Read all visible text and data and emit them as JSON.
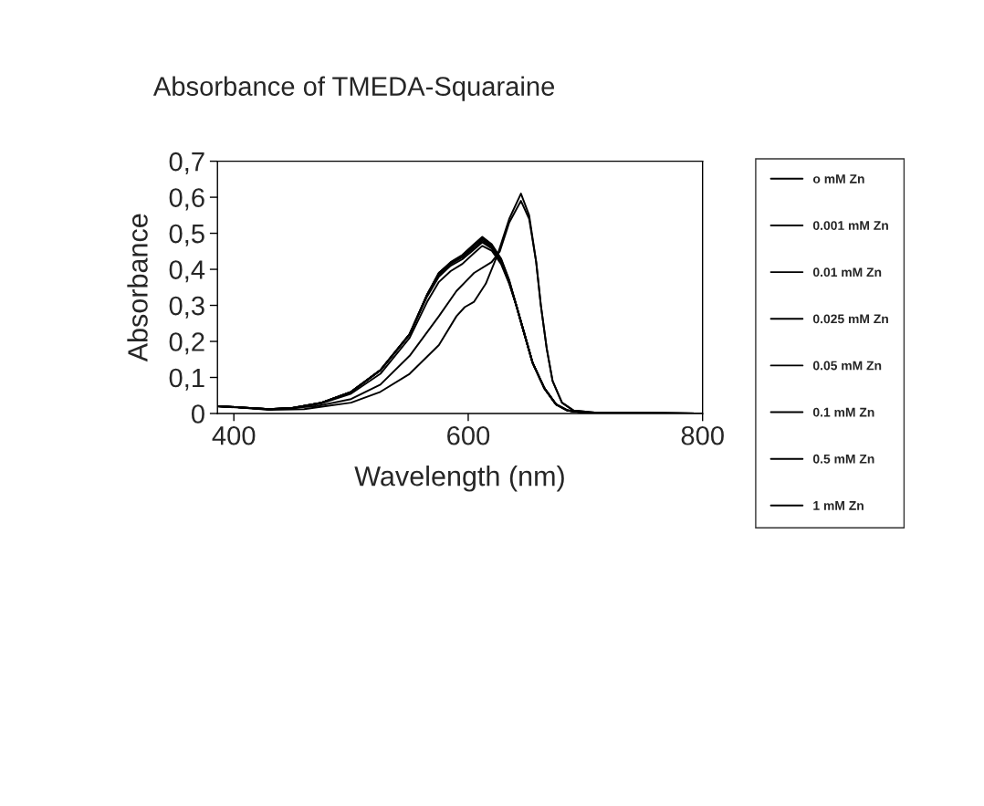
{
  "chart_data": {
    "type": "line",
    "title": "Absorbance of TMEDA-Squaraine",
    "xlabel": "Wavelength (nm)",
    "ylabel": "Absorbance",
    "xlim": [
      386,
      800
    ],
    "xticks": [
      400,
      600,
      800
    ],
    "ylim": [
      0,
      0.7
    ],
    "yticks": [
      0,
      {
        "value": 0.1,
        "label": "0,1"
      },
      {
        "value": 0.2,
        "label": "0,2"
      },
      {
        "value": 0.3,
        "label": "0,3"
      },
      {
        "value": 0.4,
        "label": "0,4"
      },
      {
        "value": 0.5,
        "label": "0,5"
      },
      {
        "value": 0.6,
        "label": "0,6"
      },
      {
        "value": 0.7,
        "label": "0,7"
      }
    ],
    "grid": false,
    "legend": "right",
    "marker": "none",
    "line_style": "solid",
    "series": [
      {
        "name": "o mM Zn",
        "color": "#000000",
        "x": [
          386,
          400,
          430,
          450,
          475,
          500,
          525,
          550,
          565,
          575,
          585,
          595,
          605,
          612,
          620,
          628,
          635,
          641,
          648,
          655,
          665,
          675,
          685,
          700,
          800
        ],
        "values": [
          0.02,
          0.018,
          0.012,
          0.015,
          0.03,
          0.06,
          0.12,
          0.22,
          0.33,
          0.39,
          0.42,
          0.44,
          0.47,
          0.49,
          0.47,
          0.43,
          0.37,
          0.3,
          0.22,
          0.14,
          0.07,
          0.025,
          0.008,
          0.002,
          0.0
        ]
      },
      {
        "name": "0.001 mM Zn",
        "color": "#000000",
        "x": [
          386,
          400,
          430,
          450,
          475,
          500,
          525,
          550,
          565,
          575,
          585,
          595,
          605,
          612,
          620,
          628,
          635,
          641,
          648,
          655,
          665,
          675,
          685,
          700,
          800
        ],
        "values": [
          0.02,
          0.018,
          0.012,
          0.015,
          0.03,
          0.06,
          0.12,
          0.22,
          0.33,
          0.39,
          0.418,
          0.438,
          0.468,
          0.488,
          0.468,
          0.428,
          0.368,
          0.3,
          0.22,
          0.14,
          0.07,
          0.025,
          0.008,
          0.002,
          0.0
        ]
      },
      {
        "name": "0.01 mM Zn",
        "color": "#000000",
        "x": [
          386,
          400,
          430,
          450,
          475,
          500,
          525,
          550,
          565,
          575,
          585,
          595,
          605,
          612,
          620,
          628,
          635,
          641,
          648,
          655,
          665,
          675,
          685,
          700,
          800
        ],
        "values": [
          0.02,
          0.018,
          0.012,
          0.015,
          0.03,
          0.06,
          0.12,
          0.22,
          0.33,
          0.39,
          0.416,
          0.436,
          0.465,
          0.485,
          0.465,
          0.425,
          0.366,
          0.3,
          0.22,
          0.14,
          0.07,
          0.025,
          0.008,
          0.002,
          0.0
        ]
      },
      {
        "name": "0.025 mM Zn",
        "color": "#000000",
        "x": [
          386,
          400,
          430,
          450,
          475,
          500,
          525,
          550,
          565,
          575,
          585,
          595,
          605,
          612,
          620,
          628,
          635,
          641,
          648,
          655,
          665,
          675,
          685,
          700,
          800
        ],
        "values": [
          0.02,
          0.018,
          0.012,
          0.015,
          0.03,
          0.06,
          0.12,
          0.22,
          0.33,
          0.385,
          0.415,
          0.433,
          0.46,
          0.48,
          0.462,
          0.422,
          0.364,
          0.3,
          0.22,
          0.14,
          0.07,
          0.025,
          0.008,
          0.002,
          0.0
        ]
      },
      {
        "name": "0.05 mM Zn",
        "color": "#000000",
        "x": [
          386,
          400,
          430,
          450,
          475,
          500,
          525,
          550,
          565,
          575,
          585,
          595,
          605,
          612,
          620,
          628,
          635,
          641,
          648,
          655,
          665,
          675,
          685,
          700,
          800
        ],
        "values": [
          0.02,
          0.018,
          0.012,
          0.015,
          0.03,
          0.06,
          0.12,
          0.22,
          0.325,
          0.38,
          0.41,
          0.428,
          0.455,
          0.475,
          0.458,
          0.42,
          0.362,
          0.3,
          0.22,
          0.14,
          0.07,
          0.025,
          0.008,
          0.002,
          0.0
        ]
      },
      {
        "name": "0.1 mM Zn",
        "color": "#000000",
        "x": [
          386,
          400,
          430,
          450,
          475,
          500,
          525,
          550,
          565,
          575,
          585,
          595,
          605,
          612,
          620,
          628,
          635,
          641,
          648,
          655,
          665,
          675,
          685,
          700,
          800
        ],
        "values": [
          0.02,
          0.018,
          0.012,
          0.014,
          0.028,
          0.055,
          0.11,
          0.21,
          0.31,
          0.365,
          0.395,
          0.415,
          0.445,
          0.465,
          0.452,
          0.415,
          0.36,
          0.3,
          0.22,
          0.14,
          0.07,
          0.025,
          0.008,
          0.002,
          0.0
        ]
      },
      {
        "name": "0.5 mM Zn",
        "color": "#000000",
        "x": [
          386,
          430,
          470,
          500,
          525,
          550,
          575,
          590,
          605,
          620,
          627,
          635,
          645,
          652,
          658,
          662,
          667,
          672,
          680,
          690,
          710,
          800
        ],
        "values": [
          0.02,
          0.011,
          0.02,
          0.04,
          0.08,
          0.16,
          0.27,
          0.34,
          0.39,
          0.42,
          0.45,
          0.53,
          0.59,
          0.54,
          0.42,
          0.3,
          0.18,
          0.09,
          0.03,
          0.008,
          0.002,
          0.0
        ]
      },
      {
        "name": "1 mM Zn",
        "color": "#000000",
        "x": [
          386,
          400,
          430,
          460,
          500,
          525,
          550,
          575,
          590,
          597,
          605,
          615,
          625,
          635,
          645,
          652,
          658,
          662,
          667,
          672,
          680,
          690,
          710,
          800
        ],
        "values": [
          0.02,
          0.018,
          0.01,
          0.012,
          0.03,
          0.06,
          0.11,
          0.19,
          0.27,
          0.295,
          0.31,
          0.36,
          0.44,
          0.54,
          0.61,
          0.55,
          0.42,
          0.3,
          0.18,
          0.09,
          0.03,
          0.008,
          0.002,
          0.0
        ]
      }
    ]
  }
}
